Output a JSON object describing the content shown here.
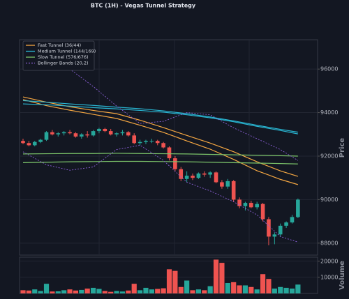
{
  "chart_data": [
    {
      "type": "candlestick",
      "title": "BTC (1H) - Vegas Tunnel Strategy",
      "ylabel": "Price",
      "ylim": [
        87450,
        97350
      ],
      "yticks": [
        88000,
        90000,
        92000,
        94000,
        96000
      ],
      "up_color": "#26a69a",
      "down_color": "#ef5350",
      "grid": true,
      "legend": "upper left",
      "open": [
        92700,
        92600,
        92500,
        92650,
        92750,
        93100,
        93000,
        93050,
        93100,
        93050,
        92900,
        93000,
        92950,
        93150,
        93250,
        93150,
        93000,
        93050,
        93100,
        92950,
        92600,
        92650,
        92700,
        92700,
        92600,
        92400,
        91900,
        91400,
        90950,
        91100,
        91000,
        91200,
        91150,
        91250,
        90800,
        90600,
        90850,
        90000,
        89700,
        89850,
        89650,
        89800,
        89100,
        88300,
        88400,
        88800,
        88950,
        89200
      ],
      "high": [
        92800,
        92700,
        92700,
        92800,
        93150,
        93200,
        93100,
        93150,
        93200,
        93100,
        93050,
        93150,
        93200,
        93300,
        93300,
        93250,
        93100,
        93200,
        93150,
        93050,
        92750,
        92750,
        92800,
        92750,
        92650,
        92450,
        92000,
        91500,
        91300,
        91200,
        91250,
        91300,
        91300,
        91300,
        90900,
        90950,
        90900,
        90100,
        89900,
        89950,
        89900,
        89850,
        89200,
        88500,
        88900,
        89000,
        89300,
        90050
      ],
      "low": [
        92550,
        92450,
        92450,
        92600,
        92700,
        92950,
        92900,
        92950,
        93000,
        92850,
        92800,
        92850,
        92900,
        93050,
        93100,
        92950,
        92900,
        92950,
        92900,
        92550,
        92500,
        92550,
        92600,
        92500,
        92350,
        91800,
        91300,
        90850,
        90800,
        90900,
        90950,
        91050,
        91000,
        90750,
        90500,
        90500,
        89900,
        89600,
        89500,
        89600,
        89550,
        89000,
        87900,
        87950,
        88300,
        88700,
        88900,
        89150
      ],
      "close": [
        92600,
        92500,
        92650,
        92750,
        93100,
        93000,
        93050,
        93100,
        93050,
        92900,
        93000,
        92950,
        93150,
        93250,
        93150,
        93000,
        93050,
        93100,
        92950,
        92600,
        92650,
        92700,
        92700,
        92600,
        92400,
        91900,
        91400,
        90950,
        91100,
        91000,
        91200,
        91150,
        91250,
        90800,
        90600,
        90850,
        90000,
        89700,
        89850,
        89650,
        89800,
        89100,
        88300,
        88400,
        88800,
        88950,
        89200,
        90000
      ],
      "series": [
        {
          "name": "Fast Tunnel (36/44)",
          "color": "#f5a742",
          "dash": false,
          "x": [
            0,
            4,
            8,
            12,
            16,
            20,
            24,
            28,
            32,
            36,
            40,
            44,
            47
          ],
          "values": [
            94720,
            94480,
            94270,
            94100,
            93950,
            93650,
            93310,
            92950,
            92600,
            92200,
            91740,
            91320,
            91070
          ]
        },
        {
          "name": null,
          "color": "#f5a742",
          "dash": false,
          "x": [
            0,
            4,
            8,
            12,
            16,
            20,
            24,
            28,
            32,
            36,
            40,
            44,
            47
          ],
          "values": [
            94600,
            94320,
            94110,
            93920,
            93730,
            93420,
            93090,
            92700,
            92320,
            91850,
            91330,
            90930,
            90690
          ]
        },
        {
          "name": "Medium Tunnel (144/169)",
          "color": "#29b6d3",
          "dash": false,
          "x": [
            0,
            4,
            8,
            12,
            16,
            20,
            24,
            28,
            32,
            36,
            40,
            44,
            47
          ],
          "values": [
            94550,
            94480,
            94400,
            94330,
            94250,
            94180,
            94080,
            93950,
            93800,
            93620,
            93420,
            93230,
            93100
          ]
        },
        {
          "name": null,
          "color": "#29b6d3",
          "dash": false,
          "x": [
            0,
            4,
            8,
            12,
            16,
            20,
            24,
            28,
            32,
            36,
            40,
            44,
            47
          ],
          "values": [
            94400,
            94360,
            94300,
            94230,
            94170,
            94100,
            94020,
            93900,
            93760,
            93580,
            93370,
            93180,
            93020
          ]
        },
        {
          "name": "Slow Tunnel (576/676)",
          "color": "#7cc46a",
          "dash": false,
          "x": [
            0,
            4,
            8,
            12,
            16,
            20,
            24,
            28,
            32,
            36,
            40,
            44,
            47
          ],
          "values": [
            92100,
            92110,
            92120,
            92120,
            92130,
            92120,
            92110,
            92100,
            92080,
            92060,
            92040,
            92020,
            92000
          ]
        },
        {
          "name": null,
          "color": "#7cc46a",
          "dash": false,
          "x": [
            0,
            4,
            8,
            12,
            16,
            20,
            24,
            28,
            32,
            36,
            40,
            44,
            47
          ],
          "values": [
            91700,
            91720,
            91740,
            91750,
            91760,
            91760,
            91750,
            91740,
            91720,
            91700,
            91680,
            91660,
            91640
          ]
        },
        {
          "name": "Bollinger Bands (20,2)",
          "color": "#8a5fd6",
          "dash": true,
          "x": [
            0,
            4,
            8,
            12,
            16,
            20,
            24,
            28,
            32,
            36,
            40,
            44,
            47
          ],
          "values": [
            96800,
            96600,
            96000,
            95200,
            94300,
            93500,
            93600,
            94000,
            93900,
            93300,
            92800,
            92300,
            91800
          ]
        },
        {
          "name": null,
          "color": "#8a5fd6",
          "dash": true,
          "x": [
            0,
            4,
            8,
            12,
            16,
            20,
            24,
            28,
            32,
            36,
            40,
            44,
            47
          ],
          "values": [
            92200,
            91600,
            91350,
            91500,
            92300,
            92500,
            91800,
            90800,
            90400,
            89900,
            89300,
            88300,
            88050
          ]
        }
      ]
    },
    {
      "type": "bar",
      "ylabel": "Volume",
      "ylim": [
        0,
        22500
      ],
      "yticks": [
        10000,
        20000
      ],
      "values": [
        2000,
        1800,
        2500,
        1500,
        6000,
        1200,
        1300,
        2000,
        2500,
        1800,
        2200,
        3000,
        3500,
        2800,
        1500,
        1000,
        1500,
        1200,
        1800,
        6000,
        2000,
        3500,
        2500,
        2800,
        3200,
        15000,
        14000,
        4000,
        8000,
        2000,
        2500,
        2000,
        4500,
        21000,
        19000,
        6500,
        7000,
        5000,
        5000,
        4000,
        2500,
        12000,
        9000,
        3000,
        4000,
        3500,
        3000,
        5500
      ]
    }
  ]
}
